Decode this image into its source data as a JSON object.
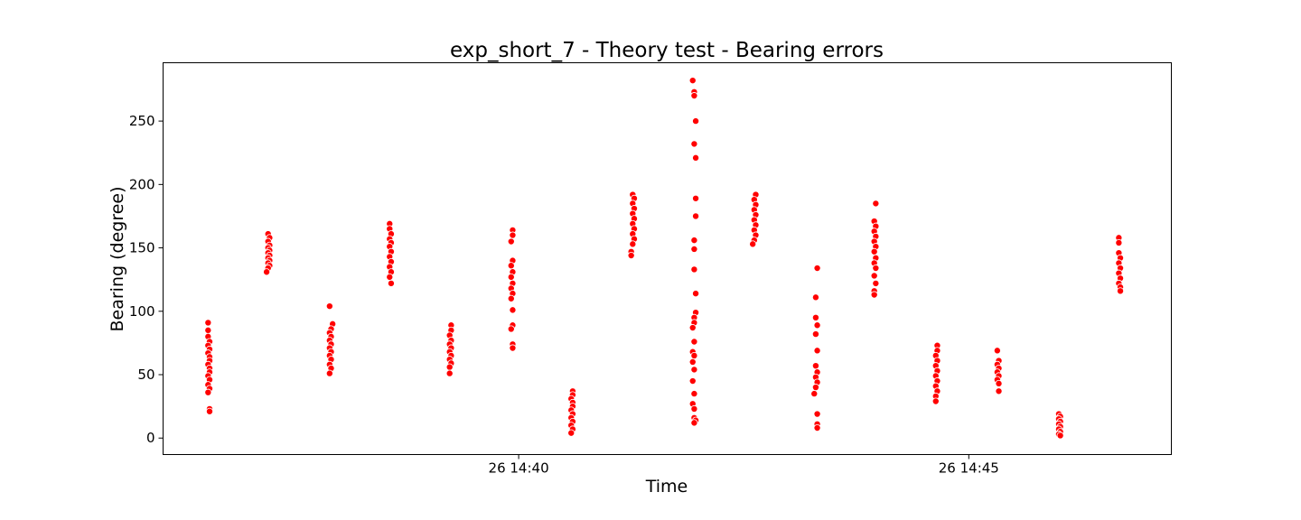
{
  "chart_data": {
    "type": "scatter",
    "title": "exp_short_7 - Theory test - Bearing errors",
    "xlabel": "Time",
    "ylabel": "Bearing (degree)",
    "x_is_time": true,
    "xlim": [
      "26 14:36:03",
      "26 14:47:15"
    ],
    "ylim": [
      -13,
      296
    ],
    "xticks": [
      {
        "value": "26 14:40:00",
        "label": "26 14:40"
      },
      {
        "value": "26 14:45:00",
        "label": "26 14:45"
      }
    ],
    "yticks": [
      0,
      50,
      100,
      150,
      200,
      250
    ],
    "grid": false,
    "marker_color": "#ff0000",
    "series": [
      {
        "points": [
          [
            "26 14:36:33",
            91
          ],
          [
            "26 14:36:33",
            85
          ],
          [
            "26 14:36:33",
            80
          ],
          [
            "26 14:36:34",
            76
          ],
          [
            "26 14:36:33",
            73
          ],
          [
            "26 14:36:34",
            70
          ],
          [
            "26 14:36:33",
            67
          ],
          [
            "26 14:36:34",
            64
          ],
          [
            "26 14:36:34",
            61
          ],
          [
            "26 14:36:33",
            58
          ],
          [
            "26 14:36:34",
            55
          ],
          [
            "26 14:36:34",
            52
          ],
          [
            "26 14:36:33",
            49
          ],
          [
            "26 14:36:34",
            46
          ],
          [
            "26 14:36:33",
            42
          ],
          [
            "26 14:36:34",
            39
          ],
          [
            "26 14:36:33",
            36
          ],
          [
            "26 14:36:34",
            23
          ],
          [
            "26 14:36:34",
            21
          ],
          [
            "26 14:37:13",
            161
          ],
          [
            "26 14:37:14",
            158
          ],
          [
            "26 14:37:13",
            155
          ],
          [
            "26 14:37:14",
            152
          ],
          [
            "26 14:37:13",
            150
          ],
          [
            "26 14:37:14",
            148
          ],
          [
            "26 14:37:13",
            146
          ],
          [
            "26 14:37:14",
            144
          ],
          [
            "26 14:37:13",
            142
          ],
          [
            "26 14:37:14",
            140
          ],
          [
            "26 14:37:13",
            138
          ],
          [
            "26 14:37:14",
            136
          ],
          [
            "26 14:37:13",
            134
          ],
          [
            "26 14:37:12",
            131
          ],
          [
            "26 14:37:54",
            104
          ],
          [
            "26 14:37:56",
            90
          ],
          [
            "26 14:37:55",
            86
          ],
          [
            "26 14:37:54",
            83
          ],
          [
            "26 14:37:55",
            80
          ],
          [
            "26 14:37:54",
            77
          ],
          [
            "26 14:37:55",
            74
          ],
          [
            "26 14:37:54",
            71
          ],
          [
            "26 14:37:55",
            68
          ],
          [
            "26 14:37:54",
            65
          ],
          [
            "26 14:37:55",
            62
          ],
          [
            "26 14:37:54",
            58
          ],
          [
            "26 14:37:55",
            55
          ],
          [
            "26 14:37:54",
            51
          ],
          [
            "26 14:38:34",
            169
          ],
          [
            "26 14:38:34",
            165
          ],
          [
            "26 14:38:35",
            161
          ],
          [
            "26 14:38:34",
            157
          ],
          [
            "26 14:38:35",
            154
          ],
          [
            "26 14:38:34",
            151
          ],
          [
            "26 14:38:35",
            147
          ],
          [
            "26 14:38:34",
            143
          ],
          [
            "26 14:38:35",
            139
          ],
          [
            "26 14:38:34",
            135
          ],
          [
            "26 14:38:35",
            131
          ],
          [
            "26 14:38:34",
            127
          ],
          [
            "26 14:38:35",
            122
          ],
          [
            "26 14:39:15",
            89
          ],
          [
            "26 14:39:15",
            85
          ],
          [
            "26 14:39:14",
            81
          ],
          [
            "26 14:39:15",
            77
          ],
          [
            "26 14:39:14",
            74
          ],
          [
            "26 14:39:15",
            71
          ],
          [
            "26 14:39:14",
            68
          ],
          [
            "26 14:39:15",
            65
          ],
          [
            "26 14:39:14",
            62
          ],
          [
            "26 14:39:15",
            59
          ],
          [
            "26 14:39:14",
            56
          ],
          [
            "26 14:39:14",
            51
          ],
          [
            "26 14:39:56",
            164
          ],
          [
            "26 14:39:56",
            160
          ],
          [
            "26 14:39:55",
            155
          ],
          [
            "26 14:39:56",
            140
          ],
          [
            "26 14:39:55",
            136
          ],
          [
            "26 14:39:56",
            131
          ],
          [
            "26 14:39:55",
            127
          ],
          [
            "26 14:39:56",
            122
          ],
          [
            "26 14:39:55",
            118
          ],
          [
            "26 14:39:56",
            114
          ],
          [
            "26 14:39:55",
            110
          ],
          [
            "26 14:39:56",
            101
          ],
          [
            "26 14:39:56",
            89
          ],
          [
            "26 14:39:55",
            86
          ],
          [
            "26 14:39:56",
            74
          ],
          [
            "26 14:39:56",
            71
          ],
          [
            "26 14:40:36",
            37
          ],
          [
            "26 14:40:36",
            34
          ],
          [
            "26 14:40:35",
            31
          ],
          [
            "26 14:40:36",
            28
          ],
          [
            "26 14:40:36",
            25
          ],
          [
            "26 14:40:35",
            22
          ],
          [
            "26 14:40:36",
            19
          ],
          [
            "26 14:40:35",
            16
          ],
          [
            "26 14:40:36",
            13
          ],
          [
            "26 14:40:35",
            10
          ],
          [
            "26 14:40:36",
            7
          ],
          [
            "26 14:40:35",
            4
          ],
          [
            "26 14:41:16",
            192
          ],
          [
            "26 14:41:17",
            189
          ],
          [
            "26 14:41:16",
            185
          ],
          [
            "26 14:41:17",
            181
          ],
          [
            "26 14:41:16",
            177
          ],
          [
            "26 14:41:17",
            173
          ],
          [
            "26 14:41:16",
            169
          ],
          [
            "26 14:41:17",
            165
          ],
          [
            "26 14:41:16",
            161
          ],
          [
            "26 14:41:17",
            157
          ],
          [
            "26 14:41:16",
            153
          ],
          [
            "26 14:41:15",
            147
          ],
          [
            "26 14:41:15",
            144
          ],
          [
            "26 14:41:56",
            282
          ],
          [
            "26 14:41:57",
            273
          ],
          [
            "26 14:41:57",
            270
          ],
          [
            "26 14:41:58",
            250
          ],
          [
            "26 14:41:57",
            232
          ],
          [
            "26 14:41:58",
            221
          ],
          [
            "26 14:41:58",
            189
          ],
          [
            "26 14:41:58",
            175
          ],
          [
            "26 14:41:57",
            156
          ],
          [
            "26 14:41:57",
            149
          ],
          [
            "26 14:41:57",
            133
          ],
          [
            "26 14:41:58",
            114
          ],
          [
            "26 14:41:58",
            99
          ],
          [
            "26 14:41:57",
            95
          ],
          [
            "26 14:41:57",
            91
          ],
          [
            "26 14:41:56",
            87
          ],
          [
            "26 14:41:57",
            76
          ],
          [
            "26 14:41:56",
            68
          ],
          [
            "26 14:41:57",
            65
          ],
          [
            "26 14:41:56",
            60
          ],
          [
            "26 14:41:57",
            54
          ],
          [
            "26 14:41:56",
            45
          ],
          [
            "26 14:41:57",
            35
          ],
          [
            "26 14:41:56",
            27
          ],
          [
            "26 14:41:57",
            23
          ],
          [
            "26 14:41:57",
            16
          ],
          [
            "26 14:41:58",
            14
          ],
          [
            "26 14:41:57",
            12
          ],
          [
            "26 14:42:38",
            192
          ],
          [
            "26 14:42:37",
            188
          ],
          [
            "26 14:42:38",
            184
          ],
          [
            "26 14:42:37",
            180
          ],
          [
            "26 14:42:38",
            176
          ],
          [
            "26 14:42:37",
            172
          ],
          [
            "26 14:42:38",
            168
          ],
          [
            "26 14:42:37",
            164
          ],
          [
            "26 14:42:38",
            160
          ],
          [
            "26 14:42:37",
            156
          ],
          [
            "26 14:42:36",
            153
          ],
          [
            "26 14:43:19",
            134
          ],
          [
            "26 14:43:18",
            111
          ],
          [
            "26 14:43:18",
            95
          ],
          [
            "26 14:43:19",
            89
          ],
          [
            "26 14:43:18",
            82
          ],
          [
            "26 14:43:19",
            69
          ],
          [
            "26 14:43:18",
            57
          ],
          [
            "26 14:43:19",
            52
          ],
          [
            "26 14:43:18",
            48
          ],
          [
            "26 14:43:19",
            44
          ],
          [
            "26 14:43:18",
            40
          ],
          [
            "26 14:43:17",
            35
          ],
          [
            "26 14:43:19",
            19
          ],
          [
            "26 14:43:19",
            11
          ],
          [
            "26 14:43:19",
            8
          ],
          [
            "26 14:43:58",
            185
          ],
          [
            "26 14:43:57",
            171
          ],
          [
            "26 14:43:58",
            167
          ],
          [
            "26 14:43:57",
            163
          ],
          [
            "26 14:43:58",
            159
          ],
          [
            "26 14:43:57",
            155
          ],
          [
            "26 14:43:58",
            151
          ],
          [
            "26 14:43:57",
            147
          ],
          [
            "26 14:43:58",
            142
          ],
          [
            "26 14:43:57",
            138
          ],
          [
            "26 14:43:58",
            134
          ],
          [
            "26 14:43:57",
            128
          ],
          [
            "26 14:43:58",
            122
          ],
          [
            "26 14:43:57",
            116
          ],
          [
            "26 14:43:57",
            113
          ],
          [
            "26 14:44:39",
            73
          ],
          [
            "26 14:44:39",
            69
          ],
          [
            "26 14:44:38",
            65
          ],
          [
            "26 14:44:39",
            61
          ],
          [
            "26 14:44:38",
            57
          ],
          [
            "26 14:44:39",
            53
          ],
          [
            "26 14:44:38",
            49
          ],
          [
            "26 14:44:39",
            45
          ],
          [
            "26 14:44:38",
            41
          ],
          [
            "26 14:44:39",
            37
          ],
          [
            "26 14:44:38",
            33
          ],
          [
            "26 14:44:38",
            29
          ],
          [
            "26 14:45:19",
            69
          ],
          [
            "26 14:45:20",
            61
          ],
          [
            "26 14:45:19",
            58
          ],
          [
            "26 14:45:20",
            55
          ],
          [
            "26 14:45:19",
            52
          ],
          [
            "26 14:45:20",
            49
          ],
          [
            "26 14:45:19",
            46
          ],
          [
            "26 14:45:20",
            43
          ],
          [
            "26 14:45:20",
            37
          ],
          [
            "26 14:46:00",
            19
          ],
          [
            "26 14:46:01",
            17
          ],
          [
            "26 14:46:00",
            15
          ],
          [
            "26 14:46:01",
            13
          ],
          [
            "26 14:46:00",
            11
          ],
          [
            "26 14:46:01",
            9
          ],
          [
            "26 14:46:00",
            7
          ],
          [
            "26 14:46:01",
            5
          ],
          [
            "26 14:46:00",
            3
          ],
          [
            "26 14:46:01",
            2
          ],
          [
            "26 14:46:40",
            158
          ],
          [
            "26 14:46:40",
            154
          ],
          [
            "26 14:46:40",
            146
          ],
          [
            "26 14:46:41",
            142
          ],
          [
            "26 14:46:40",
            138
          ],
          [
            "26 14:46:41",
            134
          ],
          [
            "26 14:46:40",
            130
          ],
          [
            "26 14:46:41",
            126
          ],
          [
            "26 14:46:40",
            122
          ],
          [
            "26 14:46:41",
            119
          ],
          [
            "26 14:46:41",
            116
          ]
        ]
      }
    ]
  }
}
